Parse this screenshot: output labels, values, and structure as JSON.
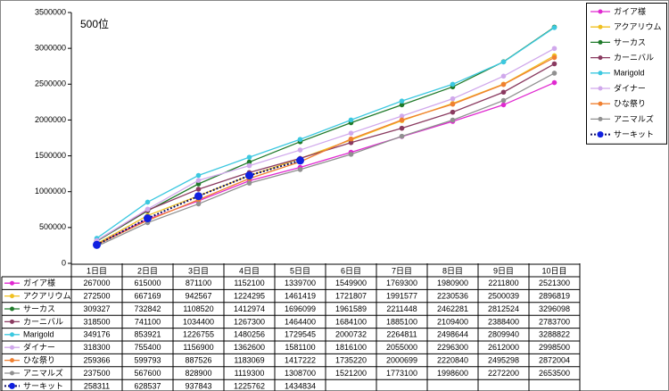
{
  "chart_data": {
    "type": "line",
    "annotation": "500位",
    "categories": [
      "1日目",
      "2日目",
      "3日目",
      "4日目",
      "5日目",
      "6日目",
      "7日目",
      "8日目",
      "9日目",
      "10日目"
    ],
    "ylim": [
      0,
      3500000
    ],
    "yticks": [
      0,
      500000,
      1000000,
      1500000,
      2000000,
      2500000,
      3000000,
      3500000
    ],
    "legend": "right",
    "series": [
      {
        "name": "ガイア様",
        "color": "#e028d0",
        "values": [
          267000,
          615000,
          871100,
          1152100,
          1339700,
          1549900,
          1769300,
          1980900,
          2211800,
          2521300
        ]
      },
      {
        "name": "アクアリウム",
        "color": "#f0c020",
        "values": [
          272500,
          667169,
          942567,
          1224295,
          1461419,
          1721807,
          1991577,
          2230536,
          2500039,
          2896819
        ]
      },
      {
        "name": "サーカス",
        "color": "#1f7a2a",
        "values": [
          309327,
          732842,
          1108520,
          1412974,
          1696099,
          1961589,
          2211448,
          2462281,
          2812524,
          3296098
        ]
      },
      {
        "name": "カーニバル",
        "color": "#8a3a60",
        "values": [
          318500,
          741100,
          1034400,
          1267300,
          1464400,
          1684100,
          1885100,
          2109400,
          2388400,
          2783700
        ]
      },
      {
        "name": "Marigold",
        "color": "#3cc8e0",
        "values": [
          349176,
          853921,
          1226755,
          1480256,
          1729545,
          2000732,
          2264811,
          2498644,
          2809940,
          3288822
        ]
      },
      {
        "name": "ダイナー",
        "color": "#d0a8ec",
        "values": [
          318300,
          755400,
          1156900,
          1362600,
          1581100,
          1816100,
          2055000,
          2296300,
          2612000,
          2998500
        ]
      },
      {
        "name": "ひな祭り",
        "color": "#f08030",
        "values": [
          259366,
          599793,
          887526,
          1183069,
          1417222,
          1735220,
          2000699,
          2220840,
          2495298,
          2872004
        ]
      },
      {
        "name": "アニマルズ",
        "color": "#909090",
        "values": [
          237500,
          567600,
          828900,
          1119300,
          1308700,
          1521200,
          1773100,
          1998600,
          2272200,
          2653500
        ]
      },
      {
        "name": "サーキット",
        "color": "#1020e0",
        "line_color": "#101060",
        "line_style": "dotted",
        "marker_size": "large",
        "values": [
          258311,
          628537,
          937843,
          1225762,
          1434834,
          null,
          null,
          null,
          null,
          null
        ]
      }
    ]
  }
}
